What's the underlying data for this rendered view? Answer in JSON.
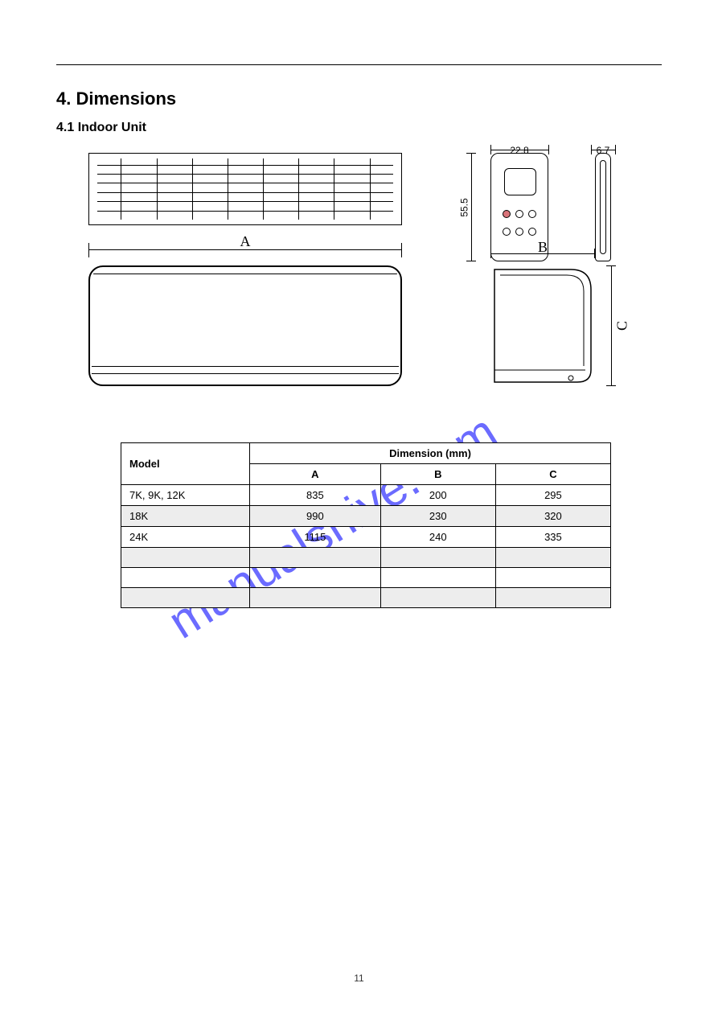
{
  "header": {
    "left": "",
    "right": ""
  },
  "section": {
    "title": "4. Dimensions",
    "subtitle": "4.1 Indoor Unit"
  },
  "dimensions": {
    "A_label": "A",
    "B_label": "B",
    "C_label": "C",
    "remote_w": "22.8",
    "remote_d": "6.7",
    "remote_h": "55.5"
  },
  "table": {
    "header_model": "Model",
    "header_dim": "Dimension (mm)",
    "col_A": "A",
    "col_B": "B",
    "col_C": "C",
    "rows": [
      {
        "model": "7K, 9K, 12K",
        "A": "835",
        "B": "200",
        "C": "295",
        "shaded": false
      },
      {
        "model": "18K",
        "A": "990",
        "B": "230",
        "C": "320",
        "shaded": true
      },
      {
        "model": "24K",
        "A": "1115",
        "B": "240",
        "C": "335",
        "shaded": false
      },
      {
        "model": " ",
        "A": " ",
        "B": " ",
        "C": " ",
        "shaded": true
      },
      {
        "model": " ",
        "A": " ",
        "B": " ",
        "C": " ",
        "shaded": false
      },
      {
        "model": " ",
        "A": " ",
        "B": " ",
        "C": " ",
        "shaded": true
      }
    ]
  },
  "watermark": "manualshive.com",
  "pagenum": "11",
  "style": {
    "watermark_color": "#6b6bff",
    "border_color": "#000000",
    "shade_color": "#ededed",
    "background": "#ffffff"
  }
}
